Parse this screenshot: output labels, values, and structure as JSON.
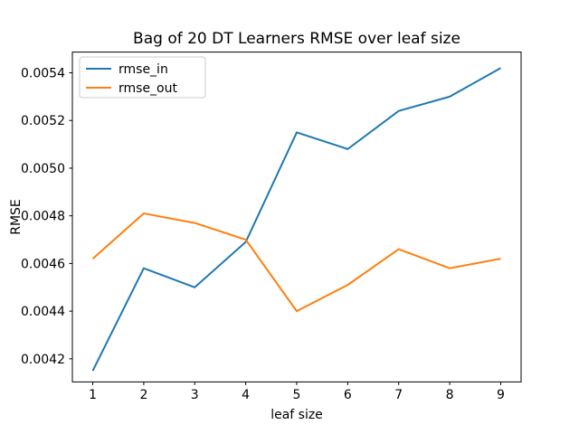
{
  "chart_data": {
    "type": "line",
    "title": "Bag of 20 DT Learners RMSE over leaf size",
    "xlabel": "leaf size",
    "ylabel": "RMSE",
    "x": [
      1,
      2,
      3,
      4,
      5,
      6,
      7,
      8,
      9
    ],
    "series": [
      {
        "name": "rmse_in",
        "color": "#1f77b4",
        "values": [
          0.00415,
          0.00458,
          0.0045,
          0.00469,
          0.00515,
          0.00508,
          0.00524,
          0.0053,
          0.00542
        ]
      },
      {
        "name": "rmse_out",
        "color": "#ff7f0e",
        "values": [
          0.00462,
          0.00481,
          0.00477,
          0.0047,
          0.0044,
          0.00451,
          0.00466,
          0.00458,
          0.00462
        ]
      }
    ],
    "xlim": [
      0.6,
      9.4
    ],
    "ylim": [
      0.004103,
      0.005487
    ],
    "xticks": [
      1,
      2,
      3,
      4,
      5,
      6,
      7,
      8,
      9
    ],
    "yticks": [
      0.0042,
      0.0044,
      0.0046,
      0.0048,
      0.005,
      0.0052,
      0.0054
    ],
    "ytick_decimals": 4,
    "grid": false,
    "legend_position": "upper left",
    "background_color": "#ffffff",
    "axes_color": "#000000"
  }
}
